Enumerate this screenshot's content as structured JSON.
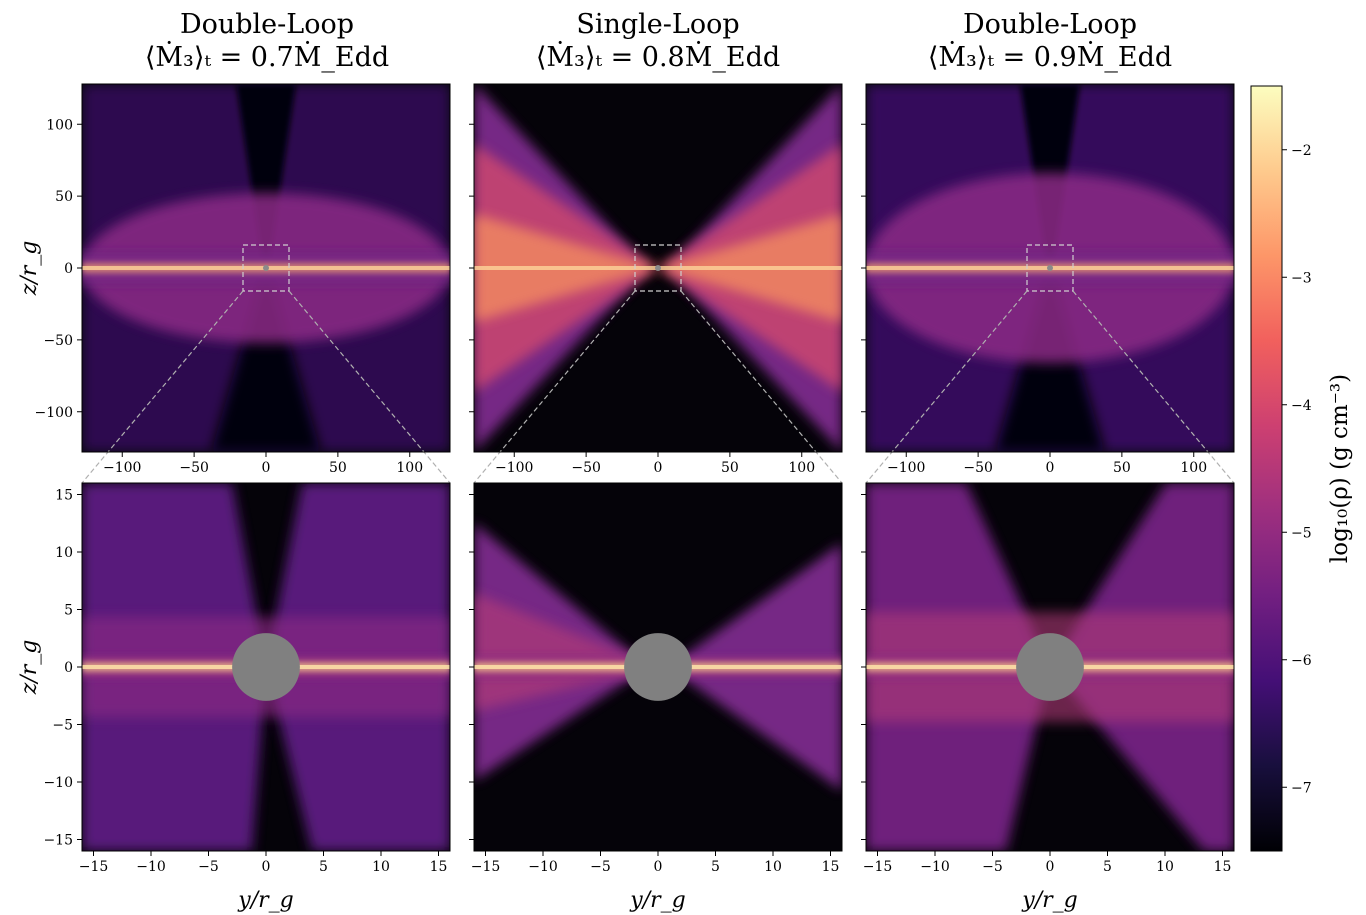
{
  "panel_titles": [
    {
      "line1": "Double-Loop",
      "line2": "⟨Ṁ₃⟩ₜ = 0.7Ṁ_Edd"
    },
    {
      "line1": "Single-Loop",
      "line2": "⟨Ṁ₃⟩ₜ = 0.8Ṁ_Edd"
    },
    {
      "line1": "Double-Loop",
      "line2": "⟨Ṁ₃⟩ₜ = 0.9Ṁ_Edd"
    }
  ],
  "colormap": {
    "name": "magma",
    "stops": [
      "#000004",
      "#180f3d",
      "#440f76",
      "#721f81",
      "#9e2f7f",
      "#cd4071",
      "#f1605d",
      "#fd9668",
      "#feca8d",
      "#fcfdbf"
    ]
  },
  "chart_data": {
    "type": "heatmap",
    "description_of_panels": "log10 density slices in the y–z plane",
    "colorbar": {
      "label": "log₁₀(ρ) (g cm⁻³)",
      "range": [
        -7.5,
        -1.5
      ],
      "ticks": [
        -2,
        -3,
        -4,
        -5,
        -6,
        -7
      ]
    },
    "panels": [
      {
        "row": "top",
        "case": "Double-Loop",
        "mdot": 0.7,
        "xlabel": "",
        "ylabel": "z/r_g",
        "xlim": [
          -128,
          128
        ],
        "ylim": [
          -128,
          128
        ],
        "xticks": [
          -100,
          -50,
          0,
          50,
          100
        ],
        "yticks": [
          100,
          50,
          0,
          -50,
          -100
        ],
        "zoom_box": [
          -16,
          16
        ]
      },
      {
        "row": "top",
        "case": "Single-Loop",
        "mdot": 0.8,
        "xlabel": "",
        "ylabel": "",
        "xlim": [
          -128,
          128
        ],
        "ylim": [
          -128,
          128
        ],
        "xticks": [
          -100,
          -50,
          0,
          50,
          100
        ],
        "yticks": [],
        "zoom_box": [
          -16,
          16
        ]
      },
      {
        "row": "top",
        "case": "Double-Loop",
        "mdot": 0.9,
        "xlabel": "",
        "ylabel": "",
        "xlim": [
          -128,
          128
        ],
        "ylim": [
          -128,
          128
        ],
        "xticks": [
          -100,
          -50,
          0,
          50,
          100
        ],
        "yticks": [],
        "zoom_box": [
          -16,
          16
        ]
      },
      {
        "row": "bottom",
        "case": "Double-Loop",
        "mdot": 0.7,
        "xlabel": "y/r_g",
        "ylabel": "z/r_g",
        "xlim": [
          -16,
          16
        ],
        "ylim": [
          -16,
          16
        ],
        "xticks": [
          -15,
          -10,
          -5,
          0,
          5,
          10,
          15
        ],
        "yticks": [
          15,
          10,
          5,
          0,
          -5,
          -10,
          -15
        ],
        "horizon_radius": 1.9
      },
      {
        "row": "bottom",
        "case": "Single-Loop",
        "mdot": 0.8,
        "xlabel": "y/r_g",
        "ylabel": "",
        "xlim": [
          -16,
          16
        ],
        "ylim": [
          -16,
          16
        ],
        "xticks": [
          -15,
          -10,
          -5,
          0,
          5,
          10,
          15
        ],
        "yticks": [],
        "horizon_radius": 1.9
      },
      {
        "row": "bottom",
        "case": "Double-Loop",
        "mdot": 0.9,
        "xlabel": "y/r_g",
        "ylabel": "",
        "xlim": [
          -16,
          16
        ],
        "ylim": [
          -16,
          16
        ],
        "xticks": [
          -15,
          -10,
          -5,
          0,
          5,
          10,
          15
        ],
        "yticks": [],
        "horizon_radius": 1.9
      }
    ]
  }
}
